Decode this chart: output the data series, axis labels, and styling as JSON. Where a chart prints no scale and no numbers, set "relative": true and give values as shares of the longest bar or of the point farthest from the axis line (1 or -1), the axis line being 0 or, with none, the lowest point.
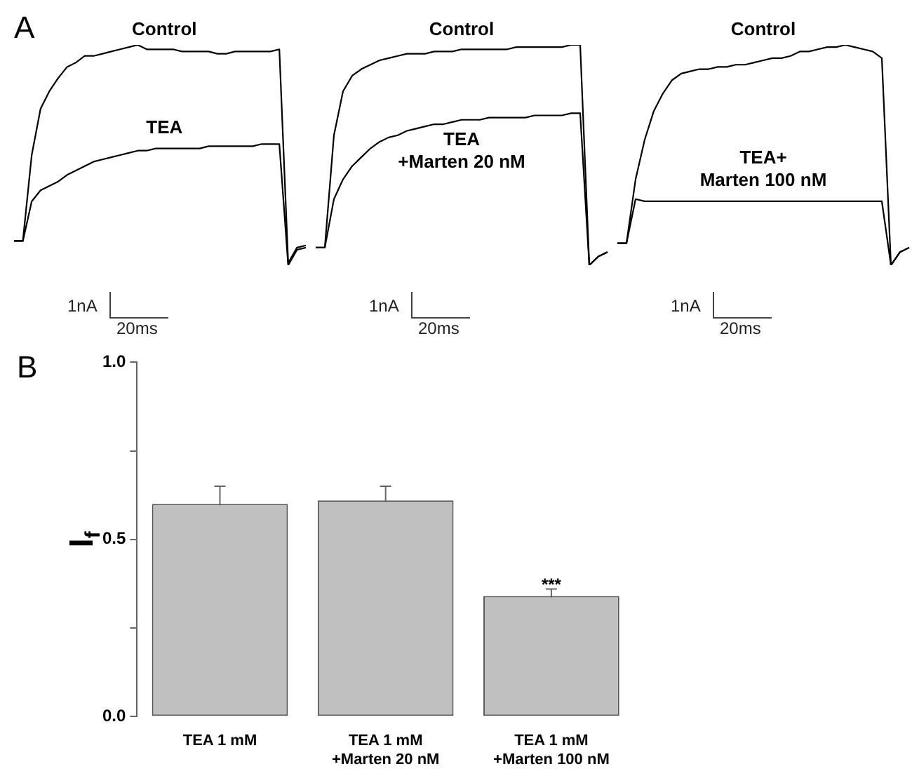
{
  "chart_data": [
    {
      "type": "line",
      "title": "A",
      "relative": true,
      "categories": [
        null,
        null,
        null,
        null,
        null,
        null,
        null,
        null,
        null,
        null,
        null,
        null,
        null,
        null,
        null,
        null,
        null,
        null,
        null,
        null,
        null,
        null,
        null,
        null,
        null,
        null,
        null,
        null,
        null,
        null,
        null,
        null,
        null,
        null
      ],
      "series": [
        {
          "name": "Control",
          "color": "#000000",
          "values": [
            0.11,
            0.11,
            0.5,
            0.71,
            0.79,
            0.85,
            0.9,
            0.92,
            0.95,
            0.95,
            0.96,
            0.97,
            0.98,
            0.99,
            1.0,
            0.98,
            0.98,
            0.98,
            0.98,
            0.97,
            0.97,
            0.97,
            0.97,
            0.96,
            0.96,
            0.97,
            0.97,
            0.97,
            0.97,
            0.97,
            0.98,
            0.01,
            0.08,
            0.09
          ]
        },
        {
          "name": "TEA",
          "color": "#000000",
          "values": [
            0.11,
            0.11,
            0.29,
            0.34,
            0.36,
            0.38,
            0.41,
            0.43,
            0.45,
            0.47,
            0.48,
            0.49,
            0.5,
            0.51,
            0.52,
            0.52,
            0.53,
            0.53,
            0.53,
            0.53,
            0.53,
            0.53,
            0.54,
            0.54,
            0.54,
            0.54,
            0.54,
            0.54,
            0.55,
            0.55,
            0.55,
            0.0,
            0.07,
            0.08
          ]
        }
      ],
      "annotations": [
        "1nA",
        "20ms"
      ]
    },
    {
      "type": "line",
      "relative": true,
      "categories": [
        null,
        null,
        null,
        null,
        null,
        null,
        null,
        null,
        null,
        null,
        null,
        null,
        null,
        null,
        null,
        null,
        null,
        null,
        null,
        null,
        null,
        null,
        null,
        null,
        null,
        null,
        null,
        null,
        null,
        null,
        null,
        null,
        null
      ],
      "series": [
        {
          "name": "Control",
          "color": "#000000",
          "values": [
            0.08,
            0.08,
            0.59,
            0.79,
            0.86,
            0.89,
            0.91,
            0.93,
            0.94,
            0.95,
            0.96,
            0.96,
            0.96,
            0.97,
            0.97,
            0.97,
            0.98,
            0.98,
            0.98,
            0.98,
            0.98,
            0.98,
            0.99,
            0.99,
            0.99,
            0.99,
            0.99,
            0.99,
            1.0,
            1.0,
            0.0,
            0.04,
            0.06
          ]
        },
        {
          "name": "TEA\n+Marten 20 nM",
          "color": "#000000",
          "values": [
            0.08,
            0.08,
            0.3,
            0.39,
            0.45,
            0.49,
            0.53,
            0.56,
            0.58,
            0.59,
            0.61,
            0.62,
            0.63,
            0.64,
            0.64,
            0.65,
            0.66,
            0.66,
            0.66,
            0.67,
            0.67,
            0.67,
            0.67,
            0.67,
            0.68,
            0.68,
            0.68,
            0.68,
            0.69,
            0.69,
            0.0,
            0.04,
            0.06
          ]
        }
      ],
      "annotations": [
        "1nA",
        "20ms"
      ]
    },
    {
      "type": "line",
      "relative": true,
      "categories": [
        null,
        null,
        null,
        null,
        null,
        null,
        null,
        null,
        null,
        null,
        null,
        null,
        null,
        null,
        null,
        null,
        null,
        null,
        null,
        null,
        null,
        null,
        null,
        null,
        null,
        null,
        null,
        null,
        null,
        null,
        null,
        null,
        null
      ],
      "series": [
        {
          "name": "Control",
          "color": "#000000",
          "values": [
            0.1,
            0.1,
            0.39,
            0.57,
            0.7,
            0.78,
            0.84,
            0.87,
            0.88,
            0.89,
            0.89,
            0.9,
            0.9,
            0.91,
            0.91,
            0.92,
            0.93,
            0.94,
            0.94,
            0.95,
            0.97,
            0.97,
            0.98,
            0.99,
            0.99,
            1.0,
            0.99,
            0.98,
            0.97,
            0.94,
            0.0,
            0.06,
            0.08
          ]
        },
        {
          "name": "TEA+\nMarten 100 nM",
          "color": "#000000",
          "values": [
            0.1,
            0.1,
            0.3,
            0.29,
            0.29,
            0.29,
            0.29,
            0.29,
            0.29,
            0.29,
            0.29,
            0.29,
            0.29,
            0.29,
            0.29,
            0.29,
            0.29,
            0.29,
            0.29,
            0.29,
            0.29,
            0.29,
            0.29,
            0.29,
            0.29,
            0.29,
            0.29,
            0.29,
            0.29,
            0.29,
            0.0,
            0.06,
            0.08
          ]
        }
      ],
      "annotations": [
        "1nA",
        "20ms"
      ]
    },
    {
      "type": "bar",
      "title": "B",
      "ylabel": "I$_{f}$",
      "categories": [
        "TEA 1 mM",
        "TEA 1 mM\n+Marten 20 nM",
        "TEA 1 mM\n+Marten 100 nM"
      ],
      "values": [
        0.6,
        0.61,
        0.34
      ],
      "errors": [
        0.05,
        0.04,
        0.02
      ],
      "color": "#c0c0c0",
      "ylim": [
        0,
        1
      ],
      "yticks": [
        {
          "value": 0,
          "label": "0.0"
        },
        {
          "value": 0.25,
          "label": null
        },
        {
          "value": 0.5,
          "label": "0.5"
        },
        {
          "value": 0.75,
          "label": null
        },
        {
          "value": 1,
          "label": "1.0"
        }
      ],
      "annotations": [
        {
          "text": "***",
          "x": "TEA 1 mM\n+Marten 100 nM",
          "y": 0.37
        }
      ]
    }
  ]
}
